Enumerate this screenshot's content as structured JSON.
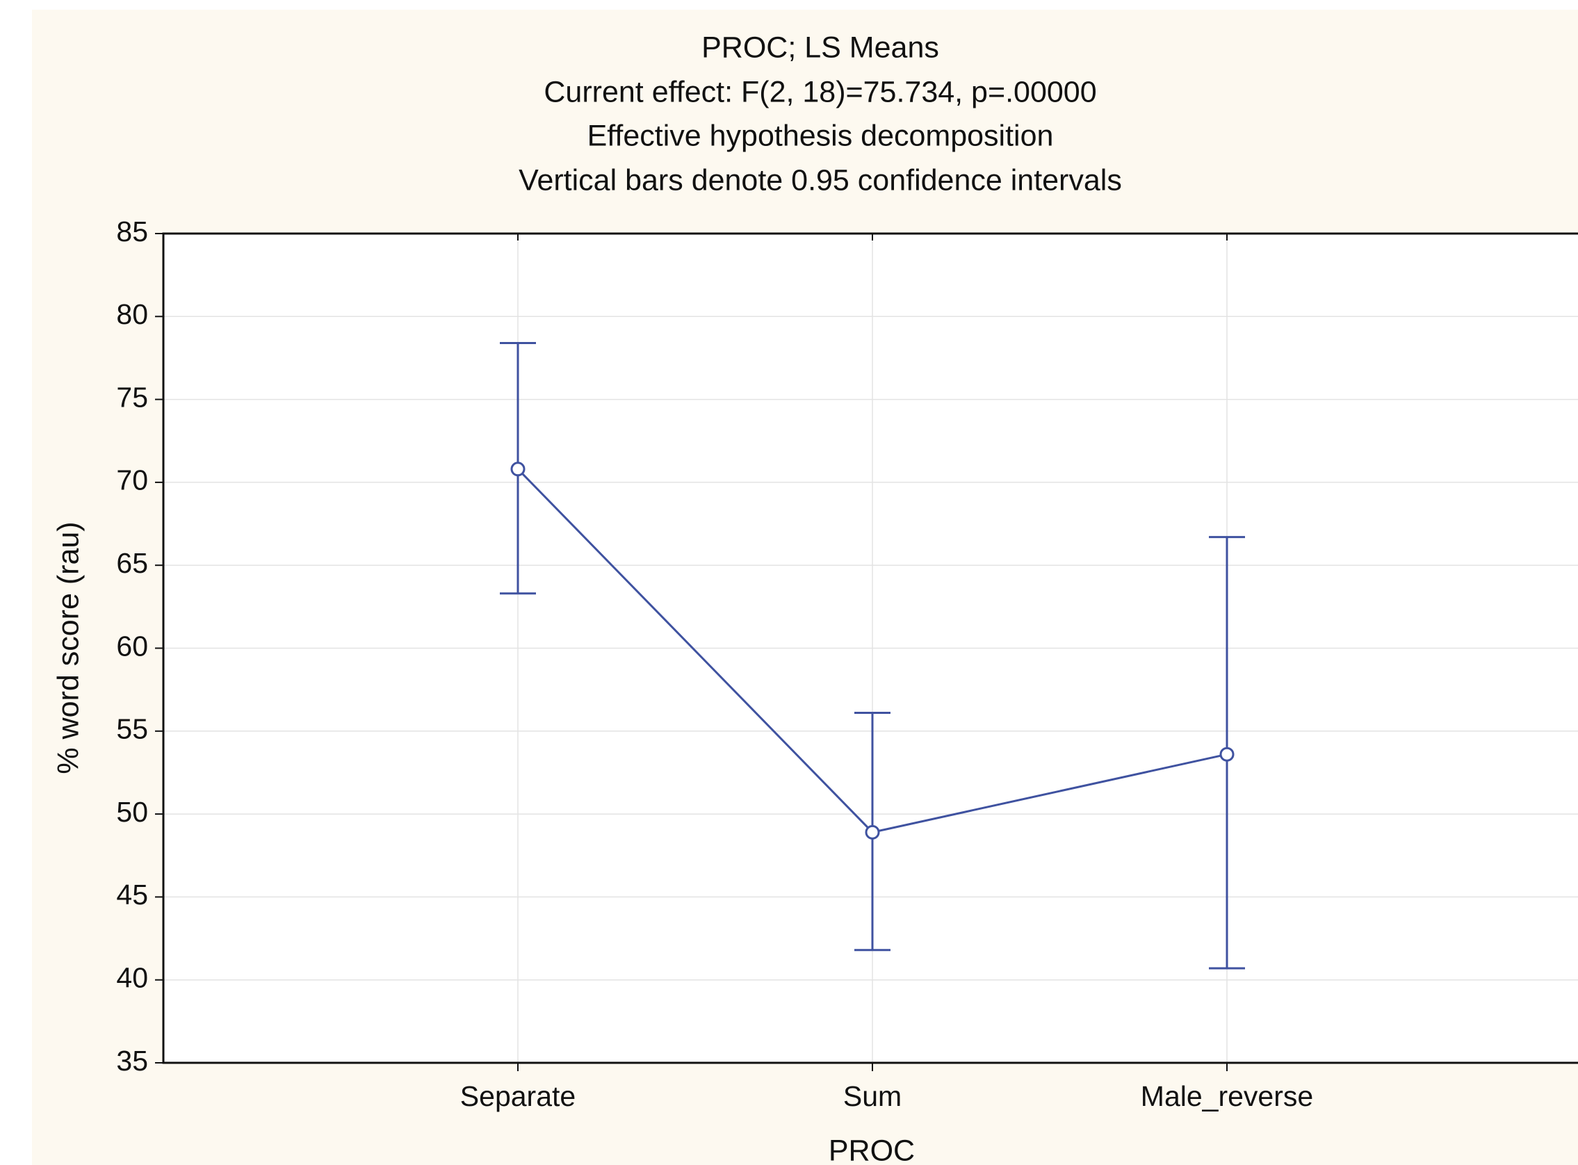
{
  "chart_data": {
    "type": "line",
    "title": [
      "PROC; LS Means",
      "Current effect: F(2, 18)=75.734, p=.00000",
      "Effective hypothesis decomposition",
      "Vertical bars denote 0.95 confidence intervals"
    ],
    "x_label": "PROC",
    "y_label": "% word score (rau)",
    "categories": [
      "Separate",
      "Sum",
      "Male_reverse"
    ],
    "series": [
      {
        "color": "#3f52a0",
        "values": [
          70.8,
          48.9,
          53.6
        ],
        "ci_lower": [
          63.3,
          41.8,
          40.7
        ],
        "ci_upper": [
          78.4,
          56.1,
          66.7
        ]
      }
    ],
    "ylim": [
      35,
      85
    ],
    "yticks": [
      35,
      40,
      45,
      50,
      55,
      60,
      65,
      70,
      75,
      80,
      85
    ],
    "grid": true
  }
}
